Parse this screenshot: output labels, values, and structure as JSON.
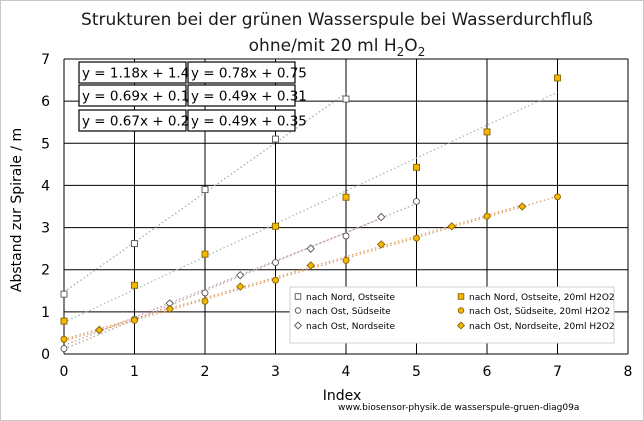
{
  "chart_data": {
    "type": "scatter",
    "title_line1": "Strukturen bei der grünen Wasserspule bei Wasserdurchfluß",
    "title_line2_prefix": "ohne/mit  20 ml  H",
    "title_line2_sub1": "2",
    "title_line2_mid": "O",
    "title_line2_sub2": "2",
    "xlabel": "Index",
    "ylabel": "Abstand zur Spirale / m",
    "xlim": [
      0,
      8
    ],
    "ylim": [
      0,
      7
    ],
    "x_ticks": [
      "0",
      "1",
      "2",
      "3",
      "4",
      "5",
      "6",
      "7",
      "8"
    ],
    "y_ticks": [
      "0",
      "1",
      "2",
      "3",
      "4",
      "5",
      "6",
      "7"
    ],
    "grid": true,
    "legend_position": "bottom-right",
    "series": [
      {
        "name": "nach  Nord, Ostseite",
        "marker": "square",
        "fill": "#ffffff",
        "stroke": "#555555",
        "x": [
          0,
          1,
          2,
          3,
          4
        ],
        "y": [
          1.42,
          2.62,
          3.9,
          5.1,
          6.05
        ],
        "trend": {
          "slope": 1.18,
          "intercept": 1.47,
          "x": [
            0,
            4
          ],
          "color": "#c0a0a0"
        }
      },
      {
        "name": "nach Nord, Ostseite, 20ml H2O2",
        "marker": "square",
        "fill": "#f5b800",
        "stroke": "#8a6400",
        "x": [
          0,
          1,
          2,
          3,
          4,
          5,
          6,
          7
        ],
        "y": [
          0.78,
          1.63,
          2.37,
          3.03,
          3.72,
          4.43,
          5.27,
          6.55
        ],
        "trend": {
          "slope": 0.78,
          "intercept": 0.75,
          "x": [
            0,
            7
          ],
          "color": "#a0c0a0"
        }
      },
      {
        "name": "nach Ost, Südseite",
        "marker": "circle",
        "fill": "#ffffff",
        "stroke": "#555555",
        "x": [
          0,
          1,
          2,
          3,
          4,
          5
        ],
        "y": [
          0.13,
          0.83,
          1.45,
          2.17,
          2.8,
          3.62
        ],
        "trend": {
          "slope": 0.69,
          "intercept": 0.12,
          "x": [
            0,
            5
          ],
          "color": "#c0a0a0"
        }
      },
      {
        "name": "nach Ost, Südseite, 20ml H2O2",
        "marker": "circle",
        "fill": "#f5b800",
        "stroke": "#8a6400",
        "x": [
          0,
          1,
          2,
          3,
          4,
          5,
          6,
          7
        ],
        "y": [
          0.35,
          0.8,
          1.25,
          1.75,
          2.22,
          2.75,
          3.27,
          3.73
        ],
        "trend": {
          "slope": 0.49,
          "intercept": 0.31,
          "x": [
            0,
            7
          ],
          "color": "#e0a060"
        }
      },
      {
        "name": "nach Ost, Nordseite",
        "marker": "diamond",
        "fill": "#ffffff",
        "stroke": "#555555",
        "x": [
          0.5,
          1.5,
          2.5,
          3.5,
          4.5
        ],
        "y": [
          0.57,
          1.2,
          1.87,
          2.5,
          3.25
        ],
        "trend": {
          "slope": 0.67,
          "intercept": 0.2,
          "x": [
            0,
            4.5
          ],
          "color": "#c0a0a0"
        }
      },
      {
        "name": "nach Ost, Nordseite, 20ml H2O2",
        "marker": "diamond",
        "fill": "#f5b800",
        "stroke": "#8a6400",
        "x": [
          0.5,
          1.5,
          2.5,
          3.5,
          4.5,
          5.5,
          6.5
        ],
        "y": [
          0.57,
          1.07,
          1.6,
          2.1,
          2.6,
          3.03,
          3.5
        ],
        "trend": {
          "slope": 0.49,
          "intercept": 0.35,
          "x": [
            0,
            6.5
          ],
          "color": "#e0a060"
        }
      }
    ],
    "equations": [
      "y = 1.18x + 1.47",
      "y = 0.78x + 0.75",
      "y = 0.69x + 0.12",
      "y = 0.49x + 0.31",
      "y = 0.67x + 0.20",
      "y = 0.49x + 0.35"
    ],
    "credit": "www.biosensor-physik.de  wasserspule-gruen-diag09a"
  }
}
